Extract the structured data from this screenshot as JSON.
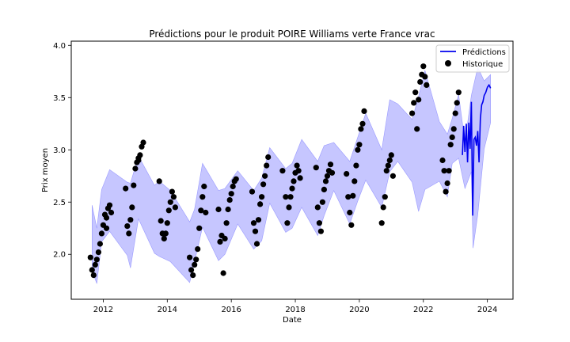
{
  "chart_data": {
    "type": "line",
    "title": "Prédictions pour le produit POIRE Williams verte France vrac",
    "xlabel": "Date",
    "ylabel": "Prix moyen",
    "xlim": [
      2011.0,
      2024.8
    ],
    "ylim": [
      1.57,
      4.04
    ],
    "x_ticks": [
      2012,
      2014,
      2016,
      2018,
      2020,
      2022,
      2024
    ],
    "y_ticks": [
      2.0,
      2.5,
      3.0,
      3.5,
      4.0
    ],
    "x_tick_labels": [
      "2012",
      "2014",
      "2016",
      "2018",
      "2020",
      "2022",
      "2024"
    ],
    "y_tick_labels": [
      "2.0",
      "2.5",
      "3.0",
      "3.5",
      "4.0"
    ],
    "legend": {
      "position": "top-right",
      "entries": [
        "Prédictions",
        "Historique"
      ]
    },
    "colors": {
      "prediction_line": "#0000ee",
      "interval_fill": "#b3b3ff",
      "interval_edge": "#9999ff",
      "historique": "#000000"
    },
    "prediction_interval": {
      "upper": [
        [
          2011.65,
          2.47
        ],
        [
          2011.8,
          2.25
        ],
        [
          2011.95,
          2.62
        ],
        [
          2012.2,
          2.81
        ],
        [
          2012.75,
          2.69
        ],
        [
          2012.85,
          2.68
        ],
        [
          2013.1,
          2.94
        ],
        [
          2013.6,
          2.66
        ],
        [
          2013.75,
          2.7
        ],
        [
          2014.1,
          2.61
        ],
        [
          2014.7,
          2.31
        ],
        [
          2014.85,
          2.43
        ],
        [
          2015.1,
          2.87
        ],
        [
          2015.6,
          2.61
        ],
        [
          2015.8,
          2.63
        ],
        [
          2016.2,
          2.8
        ],
        [
          2016.7,
          2.61
        ],
        [
          2016.95,
          2.73
        ],
        [
          2017.2,
          3.02
        ],
        [
          2017.7,
          2.82
        ],
        [
          2017.9,
          2.87
        ],
        [
          2018.2,
          3.1
        ],
        [
          2018.7,
          2.89
        ],
        [
          2018.9,
          3.04
        ],
        [
          2019.2,
          3.07
        ],
        [
          2019.7,
          2.89
        ],
        [
          2019.95,
          3.12
        ],
        [
          2020.2,
          3.35
        ],
        [
          2020.7,
          3.0
        ],
        [
          2020.95,
          3.48
        ],
        [
          2021.2,
          3.44
        ],
        [
          2021.65,
          3.29
        ],
        [
          2021.85,
          3.51
        ],
        [
          2022.05,
          3.76
        ],
        [
          2022.5,
          3.27
        ],
        [
          2022.75,
          3.15
        ],
        [
          2022.9,
          3.3
        ],
        [
          2023.1,
          3.53
        ],
        [
          2023.3,
          3.07
        ],
        [
          2023.5,
          3.52
        ],
        [
          2023.7,
          3.79
        ],
        [
          2023.9,
          3.66
        ],
        [
          2024.1,
          3.72
        ]
      ],
      "lower": [
        [
          2011.65,
          1.84
        ],
        [
          2011.8,
          1.72
        ],
        [
          2011.95,
          2.12
        ],
        [
          2012.2,
          2.22
        ],
        [
          2012.75,
          1.99
        ],
        [
          2012.85,
          1.87
        ],
        [
          2013.1,
          2.34
        ],
        [
          2013.6,
          2.01
        ],
        [
          2013.75,
          1.98
        ],
        [
          2014.1,
          1.93
        ],
        [
          2014.7,
          1.73
        ],
        [
          2014.85,
          1.93
        ],
        [
          2015.1,
          2.26
        ],
        [
          2015.6,
          1.94
        ],
        [
          2015.8,
          2.0
        ],
        [
          2016.2,
          2.29
        ],
        [
          2016.7,
          2.05
        ],
        [
          2016.95,
          2.13
        ],
        [
          2017.2,
          2.49
        ],
        [
          2017.7,
          2.21
        ],
        [
          2017.9,
          2.25
        ],
        [
          2018.2,
          2.45
        ],
        [
          2018.7,
          2.18
        ],
        [
          2018.9,
          2.37
        ],
        [
          2019.2,
          2.61
        ],
        [
          2019.7,
          2.29
        ],
        [
          2019.95,
          2.51
        ],
        [
          2020.2,
          2.71
        ],
        [
          2020.7,
          2.45
        ],
        [
          2020.95,
          2.79
        ],
        [
          2021.2,
          2.89
        ],
        [
          2021.65,
          2.69
        ],
        [
          2021.85,
          2.41
        ],
        [
          2022.05,
          2.62
        ],
        [
          2022.5,
          2.7
        ],
        [
          2022.75,
          2.55
        ],
        [
          2022.9,
          2.87
        ],
        [
          2023.1,
          2.92
        ],
        [
          2023.3,
          2.63
        ],
        [
          2023.5,
          2.79
        ],
        [
          2023.55,
          2.06
        ],
        [
          2023.7,
          2.38
        ],
        [
          2023.9,
          3.01
        ],
        [
          2024.1,
          3.26
        ]
      ]
    },
    "series": [
      {
        "name": "Prédictions",
        "style": "line",
        "points": [
          [
            2023.22,
            2.95
          ],
          [
            2023.26,
            3.23
          ],
          [
            2023.3,
            2.98
          ],
          [
            2023.34,
            3.25
          ],
          [
            2023.38,
            2.88
          ],
          [
            2023.42,
            3.26
          ],
          [
            2023.46,
            3.01
          ],
          [
            2023.5,
            3.46
          ],
          [
            2023.54,
            2.37
          ],
          [
            2023.58,
            3.1
          ],
          [
            2023.62,
            3.12
          ],
          [
            2023.66,
            3.04
          ],
          [
            2023.7,
            3.18
          ],
          [
            2023.74,
            2.88
          ],
          [
            2023.78,
            3.3
          ],
          [
            2023.82,
            3.43
          ],
          [
            2023.86,
            3.46
          ],
          [
            2023.9,
            3.52
          ],
          [
            2023.95,
            3.55
          ],
          [
            2024.0,
            3.6
          ],
          [
            2024.05,
            3.62
          ],
          [
            2024.1,
            3.59
          ]
        ]
      },
      {
        "name": "Historique",
        "style": "scatter",
        "points": [
          [
            2011.6,
            1.97
          ],
          [
            2011.65,
            1.85
          ],
          [
            2011.7,
            1.8
          ],
          [
            2011.75,
            1.9
          ],
          [
            2011.8,
            1.95
          ],
          [
            2011.85,
            2.02
          ],
          [
            2011.9,
            2.1
          ],
          [
            2011.95,
            2.2
          ],
          [
            2012.0,
            2.28
          ],
          [
            2012.05,
            2.38
          ],
          [
            2012.1,
            2.35
          ],
          [
            2012.15,
            2.44
          ],
          [
            2012.2,
            2.47
          ],
          [
            2012.25,
            2.4
          ],
          [
            2012.1,
            2.25
          ],
          [
            2012.7,
            2.63
          ],
          [
            2012.75,
            2.27
          ],
          [
            2012.8,
            2.2
          ],
          [
            2012.85,
            2.33
          ],
          [
            2012.9,
            2.45
          ],
          [
            2012.95,
            2.66
          ],
          [
            2013.0,
            2.82
          ],
          [
            2013.05,
            2.88
          ],
          [
            2013.1,
            2.92
          ],
          [
            2013.15,
            2.95
          ],
          [
            2013.2,
            3.03
          ],
          [
            2013.25,
            3.07
          ],
          [
            2013.1,
            2.9
          ],
          [
            2013.75,
            2.7
          ],
          [
            2013.8,
            2.32
          ],
          [
            2013.85,
            2.2
          ],
          [
            2013.9,
            2.15
          ],
          [
            2013.95,
            2.2
          ],
          [
            2014.0,
            2.3
          ],
          [
            2014.05,
            2.42
          ],
          [
            2014.1,
            2.5
          ],
          [
            2014.15,
            2.6
          ],
          [
            2014.2,
            2.55
          ],
          [
            2014.25,
            2.45
          ],
          [
            2014.7,
            1.97
          ],
          [
            2014.75,
            1.85
          ],
          [
            2014.8,
            1.8
          ],
          [
            2014.85,
            1.9
          ],
          [
            2014.9,
            1.95
          ],
          [
            2014.95,
            2.05
          ],
          [
            2015.0,
            2.25
          ],
          [
            2015.05,
            2.42
          ],
          [
            2015.1,
            2.55
          ],
          [
            2015.15,
            2.65
          ],
          [
            2015.2,
            2.4
          ],
          [
            2015.6,
            2.43
          ],
          [
            2015.65,
            2.12
          ],
          [
            2015.7,
            2.18
          ],
          [
            2015.75,
            1.82
          ],
          [
            2015.8,
            2.15
          ],
          [
            2015.85,
            2.3
          ],
          [
            2015.9,
            2.43
          ],
          [
            2015.95,
            2.52
          ],
          [
            2016.0,
            2.58
          ],
          [
            2016.05,
            2.65
          ],
          [
            2016.1,
            2.7
          ],
          [
            2016.15,
            2.72
          ],
          [
            2016.65,
            2.6
          ],
          [
            2016.7,
            2.3
          ],
          [
            2016.75,
            2.22
          ],
          [
            2016.8,
            2.1
          ],
          [
            2016.85,
            2.33
          ],
          [
            2016.9,
            2.48
          ],
          [
            2016.95,
            2.55
          ],
          [
            2017.0,
            2.67
          ],
          [
            2017.05,
            2.75
          ],
          [
            2017.1,
            2.85
          ],
          [
            2017.15,
            2.93
          ],
          [
            2017.6,
            2.8
          ],
          [
            2017.7,
            2.55
          ],
          [
            2017.75,
            2.3
          ],
          [
            2017.8,
            2.45
          ],
          [
            2017.85,
            2.55
          ],
          [
            2017.9,
            2.63
          ],
          [
            2017.95,
            2.7
          ],
          [
            2018.0,
            2.78
          ],
          [
            2018.05,
            2.85
          ],
          [
            2018.1,
            2.8
          ],
          [
            2018.15,
            2.73
          ],
          [
            2018.65,
            2.83
          ],
          [
            2018.7,
            2.45
          ],
          [
            2018.75,
            2.3
          ],
          [
            2018.8,
            2.22
          ],
          [
            2018.85,
            2.5
          ],
          [
            2018.9,
            2.62
          ],
          [
            2018.95,
            2.7
          ],
          [
            2019.0,
            2.75
          ],
          [
            2019.05,
            2.8
          ],
          [
            2019.1,
            2.86
          ],
          [
            2019.15,
            2.78
          ],
          [
            2019.6,
            2.77
          ],
          [
            2019.65,
            2.55
          ],
          [
            2019.7,
            2.4
          ],
          [
            2019.75,
            2.28
          ],
          [
            2019.8,
            2.56
          ],
          [
            2019.85,
            2.7
          ],
          [
            2019.9,
            2.85
          ],
          [
            2019.95,
            3.0
          ],
          [
            2020.0,
            3.05
          ],
          [
            2020.05,
            3.2
          ],
          [
            2020.1,
            3.25
          ],
          [
            2020.15,
            3.37
          ],
          [
            2020.7,
            2.3
          ],
          [
            2020.75,
            2.45
          ],
          [
            2020.8,
            2.55
          ],
          [
            2020.85,
            2.8
          ],
          [
            2020.9,
            2.85
          ],
          [
            2020.95,
            2.9
          ],
          [
            2021.0,
            2.95
          ],
          [
            2021.05,
            2.75
          ],
          [
            2021.65,
            3.35
          ],
          [
            2021.7,
            3.45
          ],
          [
            2021.75,
            3.55
          ],
          [
            2021.8,
            3.2
          ],
          [
            2021.85,
            3.48
          ],
          [
            2021.9,
            3.65
          ],
          [
            2021.95,
            3.72
          ],
          [
            2022.0,
            3.8
          ],
          [
            2022.05,
            3.7
          ],
          [
            2022.1,
            3.62
          ],
          [
            2022.6,
            2.9
          ],
          [
            2022.65,
            2.8
          ],
          [
            2022.7,
            2.6
          ],
          [
            2022.75,
            2.68
          ],
          [
            2022.8,
            2.8
          ],
          [
            2022.85,
            3.05
          ],
          [
            2022.9,
            3.12
          ],
          [
            2022.95,
            3.2
          ],
          [
            2023.0,
            3.35
          ],
          [
            2023.05,
            3.45
          ],
          [
            2023.1,
            3.55
          ]
        ]
      }
    ]
  }
}
